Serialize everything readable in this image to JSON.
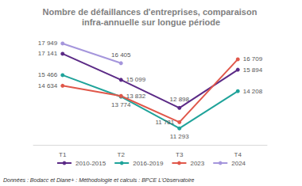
{
  "chart_data": {
    "type": "line",
    "title": "Nombre de défaillances d'entreprises, comparaison infra-annuelle sur longue période",
    "source": "Données : Bodacc et Diane+ : Méthodologie et calculs : BPCE L'Observatoire",
    "categories": [
      "T1",
      "T2",
      "T3",
      "T4"
    ],
    "series": [
      {
        "name": "2010-2015",
        "color": "#5b2a86",
        "values": [
          17141,
          15099,
          12898,
          15894
        ],
        "value_labels": [
          "17 141",
          "15 099",
          "12 898",
          "15 894"
        ]
      },
      {
        "name": "2016-2019",
        "color": "#1fa39a",
        "values": [
          15466,
          13774,
          11293,
          14208
        ],
        "value_labels": [
          "15 466",
          "13 774",
          "11 293",
          "14 208"
        ]
      },
      {
        "name": "2023",
        "color": "#e0574a",
        "values": [
          14634,
          13832,
          11781,
          16709
        ],
        "value_labels": [
          "14 634",
          "13 832",
          "11 781",
          "16 709"
        ]
      },
      {
        "name": "2024",
        "color": "#a596dc",
        "values": [
          17949,
          16405,
          null,
          null
        ],
        "value_labels": [
          "17 949",
          "16 405",
          null,
          null
        ]
      }
    ],
    "ylim": [
      10000,
      19000
    ],
    "tick_labels": "x",
    "grid": false,
    "legend": "bottom",
    "data_labels": true,
    "marker": "circle"
  }
}
